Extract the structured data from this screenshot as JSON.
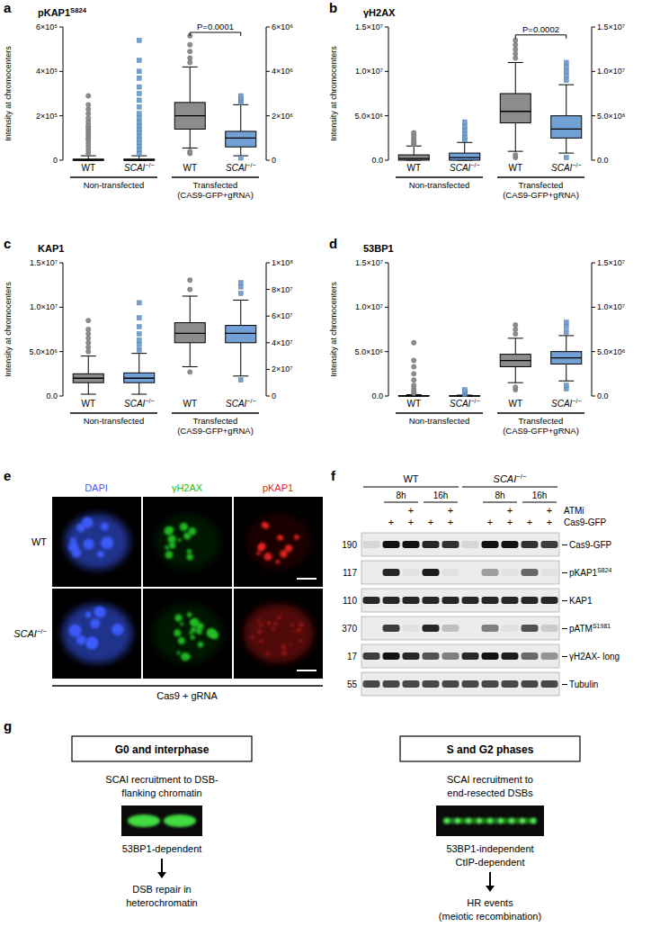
{
  "chart_data": [
    {
      "panel": "a",
      "type": "box",
      "title": "pKAP1S824",
      "y_label": "Intensity at chromocenters",
      "categories": [
        "WT",
        "SCAI−/−",
        "WT",
        "SCAI−/−"
      ],
      "groups": [
        [
          "Non-transfected"
        ],
        [
          "Transfected",
          "(CAS9-GFP+gRNA)"
        ]
      ],
      "annotation": "P=0.0001",
      "ylim": [
        0,
        600000
      ],
      "yticks": [
        0,
        {
          "value": 200000,
          "label": "2×10⁵"
        },
        {
          "value": 400000,
          "label": "4×10⁵"
        },
        {
          "value": 600000,
          "label": "6×10⁵"
        }
      ],
      "y2lim": [
        0,
        6000000
      ],
      "y2ticks": [
        0,
        {
          "value": 2000000,
          "label": "2×10⁶"
        },
        {
          "value": 4000000,
          "label": "4×10⁶"
        },
        {
          "value": 6000000,
          "label": "6×10⁶"
        }
      ],
      "boxes": [
        {
          "axis": "y",
          "color": "#8c8c8c",
          "marker": "circle",
          "whisker_low": 0,
          "q1": 0,
          "median": 0,
          "q3": 5000,
          "whisker_high": 20000,
          "outliers": [
            30000,
            45000,
            60000,
            75000,
            90000,
            100000,
            110000,
            120000,
            130000,
            140000,
            150000,
            160000,
            175000,
            190000,
            210000,
            230000,
            250000,
            290000
          ]
        },
        {
          "axis": "y",
          "color": "#72a1d6",
          "marker": "square",
          "whisker_low": 0,
          "q1": 0,
          "median": 0,
          "q3": 5000,
          "whisker_high": 20000,
          "outliers": [
            30000,
            50000,
            65000,
            80000,
            95000,
            110000,
            125000,
            140000,
            155000,
            170000,
            190000,
            210000,
            240000,
            270000,
            300000,
            330000,
            370000,
            400000,
            450000,
            540000
          ]
        },
        {
          "axis": "y2",
          "color": "#8c8c8c",
          "marker": "circle",
          "whisker_low": 550000,
          "q1": 1400000,
          "median": 2000000,
          "q3": 2600000,
          "whisker_high": 4200000,
          "outliers": [
            300000,
            400000,
            4400000,
            4600000,
            4900000,
            5200000,
            5600000
          ]
        },
        {
          "axis": "y2",
          "color": "#72a1d6",
          "marker": "square",
          "whisker_low": 200000,
          "q1": 600000,
          "median": 1000000,
          "q3": 1300000,
          "whisker_high": 2500000,
          "outliers": [
            100000,
            2600000,
            2700000,
            2800000,
            2900000
          ]
        }
      ]
    },
    {
      "panel": "b",
      "type": "box",
      "title": "γH2AX",
      "y_label": "Intensity at chromocenters",
      "categories": [
        "WT",
        "SCAI−/−",
        "WT",
        "SCAI−/−"
      ],
      "groups": [
        [
          "Non-transfected"
        ],
        [
          "Transfected",
          "(CAS9-GFP+gRNA)"
        ]
      ],
      "annotation": "P=0.0002",
      "ylim": [
        0,
        15000000
      ],
      "yticks": [
        {
          "value": 0,
          "label": "0.0"
        },
        {
          "value": 5000000,
          "label": "5.0×10⁶"
        },
        {
          "value": 10000000,
          "label": "1.0×10⁷"
        },
        {
          "value": 15000000,
          "label": "1.5×10⁷"
        }
      ],
      "y2lim": [
        0,
        15000000
      ],
      "y2ticks": [
        {
          "value": 0,
          "label": "0.0"
        },
        {
          "value": 5000000,
          "label": "5.0×10⁶"
        },
        {
          "value": 10000000,
          "label": "1.0×10⁷"
        },
        {
          "value": 15000000,
          "label": "1.5×10⁷"
        }
      ],
      "boxes": [
        {
          "axis": "y",
          "color": "#8c8c8c",
          "marker": "circle",
          "whisker_low": 0,
          "q1": 0,
          "median": 200000,
          "q3": 600000,
          "whisker_high": 1600000,
          "outliers": [
            1800000,
            2000000,
            2200000,
            2500000,
            2800000,
            3100000
          ]
        },
        {
          "axis": "y",
          "color": "#72a1d6",
          "marker": "square",
          "whisker_low": 0,
          "q1": 0,
          "median": 300000,
          "q3": 800000,
          "whisker_high": 2000000,
          "outliers": [
            2300000,
            2600000,
            3000000,
            3400000,
            3800000,
            4300000
          ]
        },
        {
          "axis": "y2",
          "color": "#8c8c8c",
          "marker": "circle",
          "whisker_low": 1000000,
          "q1": 4200000,
          "median": 5500000,
          "q3": 7500000,
          "whisker_high": 11000000,
          "outliers": [
            300000,
            600000,
            11500000,
            12000000,
            12500000,
            13000000,
            13500000
          ]
        },
        {
          "axis": "y2",
          "color": "#72a1d6",
          "marker": "square",
          "whisker_low": 800000,
          "q1": 2500000,
          "median": 3500000,
          "q3": 5000000,
          "whisker_high": 8500000,
          "outliers": [
            300000,
            9000000,
            9500000,
            10000000,
            10500000,
            11000000
          ]
        }
      ]
    },
    {
      "panel": "c",
      "type": "box",
      "title": "KAP1",
      "y_label": "Intensity at chromocenters",
      "categories": [
        "WT",
        "SCAI−/−",
        "WT",
        "SCAI−/−"
      ],
      "groups": [
        [
          "Non-transfected"
        ],
        [
          "Transfected",
          "(CAS9-GFP+gRNA)"
        ]
      ],
      "ylim": [
        0,
        15000000
      ],
      "yticks": [
        {
          "value": 0,
          "label": "0.0"
        },
        {
          "value": 5000000,
          "label": "5.0×10⁶"
        },
        {
          "value": 10000000,
          "label": "1.0×10⁷"
        },
        {
          "value": 15000000,
          "label": "1.5×10⁷"
        }
      ],
      "y2lim": [
        0,
        100000000
      ],
      "y2ticks": [
        0,
        {
          "value": 20000000,
          "label": "2×10⁷"
        },
        {
          "value": 40000000,
          "label": "4×10⁷"
        },
        {
          "value": 60000000,
          "label": "6×10⁷"
        },
        {
          "value": 80000000,
          "label": "8×10⁷"
        },
        {
          "value": 100000000,
          "label": "1×10⁸"
        }
      ],
      "boxes": [
        {
          "axis": "y",
          "color": "#8c8c8c",
          "marker": "circle",
          "whisker_low": 200000,
          "q1": 1500000,
          "median": 2000000,
          "q3": 2500000,
          "whisker_high": 4500000,
          "outliers": [
            5000000,
            5500000,
            6000000,
            6500000,
            7000000,
            7500000,
            8500000
          ]
        },
        {
          "axis": "y",
          "color": "#72a1d6",
          "marker": "square",
          "whisker_low": 200000,
          "q1": 1500000,
          "median": 2000000,
          "q3": 2600000,
          "whisker_high": 4800000,
          "outliers": [
            5200000,
            5800000,
            6300000,
            7000000,
            7800000,
            8800000,
            10500000
          ]
        },
        {
          "axis": "y2",
          "color": "#8c8c8c",
          "marker": "circle",
          "whisker_low": 22000000,
          "q1": 40000000,
          "median": 47000000,
          "q3": 55000000,
          "whisker_high": 75000000,
          "outliers": [
            18000000,
            80000000,
            87000000
          ]
        },
        {
          "axis": "y2",
          "color": "#72a1d6",
          "marker": "square",
          "whisker_low": 15000000,
          "q1": 40000000,
          "median": 47000000,
          "q3": 53000000,
          "whisker_high": 72000000,
          "outliers": [
            12000000,
            77000000,
            82000000,
            85000000
          ]
        }
      ]
    },
    {
      "panel": "d",
      "type": "box",
      "title": "53BP1",
      "y_label": "Intensity at chromocenters",
      "categories": [
        "WT",
        "SCAI−/−",
        "WT",
        "SCAI−/−"
      ],
      "groups": [
        [
          "Non-transfected"
        ],
        [
          "Transfected",
          "(CAS9-GFP+gRNA)"
        ]
      ],
      "ylim": [
        0,
        15000000
      ],
      "yticks": [
        {
          "value": 0,
          "label": "0.0"
        },
        {
          "value": 5000000,
          "label": "5.0×10⁶"
        },
        {
          "value": 10000000,
          "label": "1.0×10⁷"
        },
        {
          "value": 15000000,
          "label": "1.5×10⁷"
        }
      ],
      "y2lim": [
        0,
        15000000
      ],
      "y2ticks": [
        {
          "value": 0,
          "label": "0.0"
        },
        {
          "value": 5000000,
          "label": "5.0×10⁶"
        },
        {
          "value": 10000000,
          "label": "1.0×10⁷"
        },
        {
          "value": 15000000,
          "label": "1.5×10⁷"
        }
      ],
      "boxes": [
        {
          "axis": "y",
          "color": "#8c8c8c",
          "marker": "circle",
          "whisker_low": 0,
          "q1": 0,
          "median": 0,
          "q3": 50000,
          "whisker_high": 150000,
          "outliers": [
            300000,
            500000,
            800000,
            1200000,
            1800000,
            2500000,
            3300000,
            4000000,
            6000000
          ]
        },
        {
          "axis": "y",
          "color": "#72a1d6",
          "marker": "square",
          "whisker_low": 0,
          "q1": 0,
          "median": 0,
          "q3": 30000,
          "whisker_high": 100000,
          "outliers": [
            200000,
            300000,
            400000,
            500000,
            700000
          ]
        },
        {
          "axis": "y2",
          "color": "#8c8c8c",
          "marker": "circle",
          "whisker_low": 1500000,
          "q1": 3300000,
          "median": 4000000,
          "q3": 4700000,
          "whisker_high": 6500000,
          "outliers": [
            700000,
            1000000,
            7000000,
            7500000,
            8000000
          ]
        },
        {
          "axis": "y2",
          "color": "#72a1d6",
          "marker": "square",
          "whisker_low": 1700000,
          "q1": 3600000,
          "median": 4300000,
          "q3": 5000000,
          "whisker_high": 6800000,
          "outliers": [
            800000,
            1200000,
            7200000,
            7800000,
            8300000
          ]
        }
      ]
    }
  ],
  "figure_e": {
    "label": "e",
    "channels": [
      {
        "label": "DAPI",
        "color": "#3d5cff"
      },
      {
        "label": "γH2AX",
        "color": "#22c022"
      },
      {
        "label": "pKAP1",
        "color": "#e8231e"
      }
    ],
    "rows": [
      "WT",
      "SCAI−/−"
    ],
    "caption": "Cas9 + gRNA"
  },
  "figure_f": {
    "label": "f",
    "genotype": [
      "WT",
      "WT",
      "WT",
      "WT",
      "WT",
      "SCAI−/−",
      "SCAI−/−",
      "SCAI−/−",
      "SCAI−/−",
      "SCAI−/−"
    ],
    "time": [
      null,
      "8h",
      "8h",
      "16h",
      "16h",
      null,
      "8h",
      "8h",
      "16h",
      "16h"
    ],
    "treatments": [
      {
        "label": "ATMi",
        "marks": [
          null,
          null,
          "+",
          null,
          "+",
          null,
          null,
          "+",
          null,
          "+"
        ]
      },
      {
        "label": "Cas9-GFP",
        "marks": [
          null,
          "+",
          "+",
          "+",
          "+",
          null,
          "+",
          "+",
          "+",
          "+"
        ]
      }
    ],
    "blots": [
      {
        "mw": 190,
        "label": "Cas9-GFP",
        "intensity": [
          0.1,
          1,
          1,
          0.9,
          0.85,
          0.1,
          1,
          1,
          0.85,
          0.8
        ]
      },
      {
        "mw": 117,
        "label": "pKAP1S824",
        "intensity": [
          0,
          0.9,
          0.05,
          0.95,
          0.05,
          0,
          0.35,
          0.05,
          0.6,
          0.05
        ]
      },
      {
        "mw": 110,
        "label": "KAP1",
        "intensity": [
          0.9,
          0.9,
          0.9,
          0.9,
          0.9,
          0.9,
          0.9,
          0.9,
          0.9,
          0.9
        ]
      },
      {
        "mw": 370,
        "label": "pATMS1981",
        "intensity": [
          0,
          0.8,
          0.05,
          0.9,
          0.2,
          0,
          0.5,
          0.05,
          0.7,
          0.15
        ]
      },
      {
        "mw": 17,
        "label": "γH2AX- long",
        "intensity": [
          0.8,
          1,
          0.9,
          0.7,
          0.5,
          0.9,
          1,
          0.95,
          0.6,
          0.4
        ]
      },
      {
        "mw": 55,
        "label": "Tubulin",
        "intensity": [
          0.75,
          0.75,
          0.75,
          0.75,
          0.75,
          0.75,
          0.75,
          0.75,
          0.75,
          0.75
        ]
      }
    ]
  },
  "figure_g": {
    "label": "g",
    "columns": [
      {
        "header": "G0 and interphase",
        "recruitment": [
          "SCAI recruitment to DSB-",
          "flanking chromatin"
        ],
        "dependency": [
          "53BP1-dependent"
        ],
        "outcome": [
          "DSB repair in",
          "heterochromatin"
        ]
      },
      {
        "header": "S and G2 phases",
        "recruitment": [
          "SCAI recruitment to",
          "end-resected DSBs"
        ],
        "dependency": [
          "53BP1-independent",
          "CtIP-dependent"
        ],
        "outcome": [
          "HR events",
          "(meiotic recombination)"
        ]
      }
    ]
  }
}
